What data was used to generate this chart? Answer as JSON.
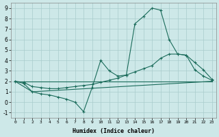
{
  "xlabel": "Humidex (Indice chaleur)",
  "xlim": [
    -0.5,
    23.5
  ],
  "ylim": [
    -1.5,
    9.5
  ],
  "xticks": [
    0,
    1,
    2,
    3,
    4,
    5,
    6,
    7,
    8,
    9,
    10,
    11,
    12,
    13,
    14,
    15,
    16,
    17,
    18,
    19,
    20,
    21,
    22,
    23
  ],
  "yticks": [
    -1,
    0,
    1,
    2,
    3,
    4,
    5,
    6,
    7,
    8,
    9
  ],
  "background_color": "#cde8e8",
  "grid_color": "#a8cccc",
  "line_color": "#1a6b5a",
  "line1_x": [
    0,
    1,
    2,
    3,
    4,
    5,
    6,
    7,
    8,
    9,
    10,
    11,
    12,
    13,
    14,
    15,
    16,
    17,
    18,
    19,
    20,
    21,
    22,
    23
  ],
  "line1_y": [
    2.0,
    1.8,
    1.0,
    0.8,
    0.7,
    0.5,
    0.3,
    0.0,
    -0.9,
    1.4,
    4.0,
    3.0,
    2.5,
    2.6,
    7.5,
    8.2,
    9.0,
    8.8,
    6.0,
    4.6,
    4.5,
    3.1,
    2.5,
    2.1
  ],
  "line2_x": [
    0,
    2,
    23
  ],
  "line2_y": [
    2.0,
    2.0,
    2.0
  ],
  "line3_x": [
    0,
    1,
    2,
    3,
    4,
    5,
    6,
    7,
    8,
    9,
    10,
    11,
    12,
    13,
    14,
    15,
    16,
    17,
    18,
    19,
    20,
    21,
    22,
    23
  ],
  "line3_y": [
    2.0,
    1.9,
    1.5,
    1.4,
    1.3,
    1.3,
    1.4,
    1.5,
    1.6,
    1.7,
    1.9,
    2.1,
    2.3,
    2.6,
    2.9,
    3.2,
    3.5,
    4.2,
    4.6,
    4.6,
    4.5,
    3.8,
    3.1,
    2.2
  ],
  "line4_x": [
    0,
    2,
    23
  ],
  "line4_y": [
    2.0,
    1.0,
    2.0
  ],
  "figsize": [
    3.2,
    2.0
  ],
  "dpi": 100
}
